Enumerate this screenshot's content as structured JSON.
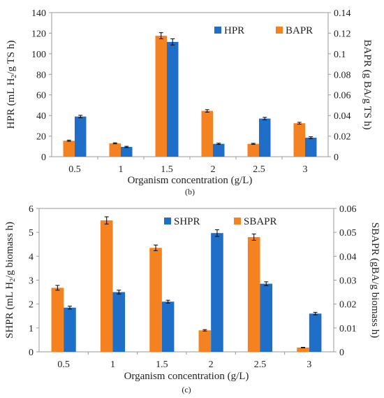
{
  "colors": {
    "blue": "#1f6fc9",
    "orange": "#f58220",
    "frame": "#9a9a9a"
  },
  "chart_data": [
    {
      "type": "bar",
      "caption": "(b)",
      "categories": [
        "0.5",
        "1",
        "1.5",
        "2",
        "2.5",
        "3"
      ],
      "xlabel": "Organism concentration (g/L)",
      "ylabel": {
        "main": "HPR (mL H",
        "sub": "2",
        "tail": "/g TS h)"
      },
      "y2label": "BAPR (g BA/g TS h)",
      "ylim": [
        0,
        140
      ],
      "yticks": [
        "0",
        "20",
        "40",
        "60",
        "80",
        "100",
        "120",
        "140"
      ],
      "y2lim": [
        0,
        0.14
      ],
      "y2ticks": [
        "0",
        "0.02",
        "0.04",
        "0.06",
        "0.08",
        "0.1",
        "0.12",
        "0.14"
      ],
      "legend": "top-right",
      "series": [
        {
          "name": "BAPR",
          "axis": "right",
          "color": "#f58220",
          "values": [
            0.0155,
            0.013,
            0.1175,
            0.0445,
            0.0125,
            0.0325
          ],
          "errors": [
            0.0006,
            0.0005,
            0.003,
            0.0012,
            0.0005,
            0.0009
          ]
        },
        {
          "name": "HPR",
          "axis": "left",
          "color": "#1f6fc9",
          "values": [
            39,
            9.5,
            111.5,
            12.5,
            37,
            18.5
          ],
          "errors": [
            1.2,
            0.6,
            3,
            0.6,
            1.2,
            0.9
          ]
        }
      ]
    },
    {
      "type": "bar",
      "caption": "(c)",
      "categories": [
        "0.5",
        "1",
        "1.5",
        "2",
        "2.5",
        "3"
      ],
      "xlabel": "Organism concentration (g/L)",
      "ylabel": {
        "main": "SHPR (mL H",
        "sub": "2",
        "tail": "/g biomass h)"
      },
      "y2label": "SBAPR (gBA/g biomass h)",
      "ylim": [
        0,
        6
      ],
      "yticks": [
        "0",
        "1",
        "2",
        "3",
        "4",
        "5",
        "6"
      ],
      "y2lim": [
        0,
        0.06
      ],
      "y2ticks": [
        "0",
        "0.01",
        "0.02",
        "0.03",
        "0.04",
        "0.05",
        "0.06"
      ],
      "legend": "top-right",
      "series": [
        {
          "name": "SBAPR",
          "axis": "right",
          "color": "#f58220",
          "values": [
            0.0268,
            0.055,
            0.0435,
            0.009,
            0.048,
            0.0018
          ],
          "errors": [
            0.001,
            0.0015,
            0.0012,
            0.0003,
            0.0013,
            0.0001
          ]
        },
        {
          "name": "SHPR",
          "axis": "left",
          "color": "#1f6fc9",
          "values": [
            1.85,
            2.5,
            2.1,
            4.97,
            2.85,
            1.6
          ],
          "errors": [
            0.06,
            0.08,
            0.06,
            0.14,
            0.08,
            0.05
          ]
        }
      ]
    }
  ]
}
